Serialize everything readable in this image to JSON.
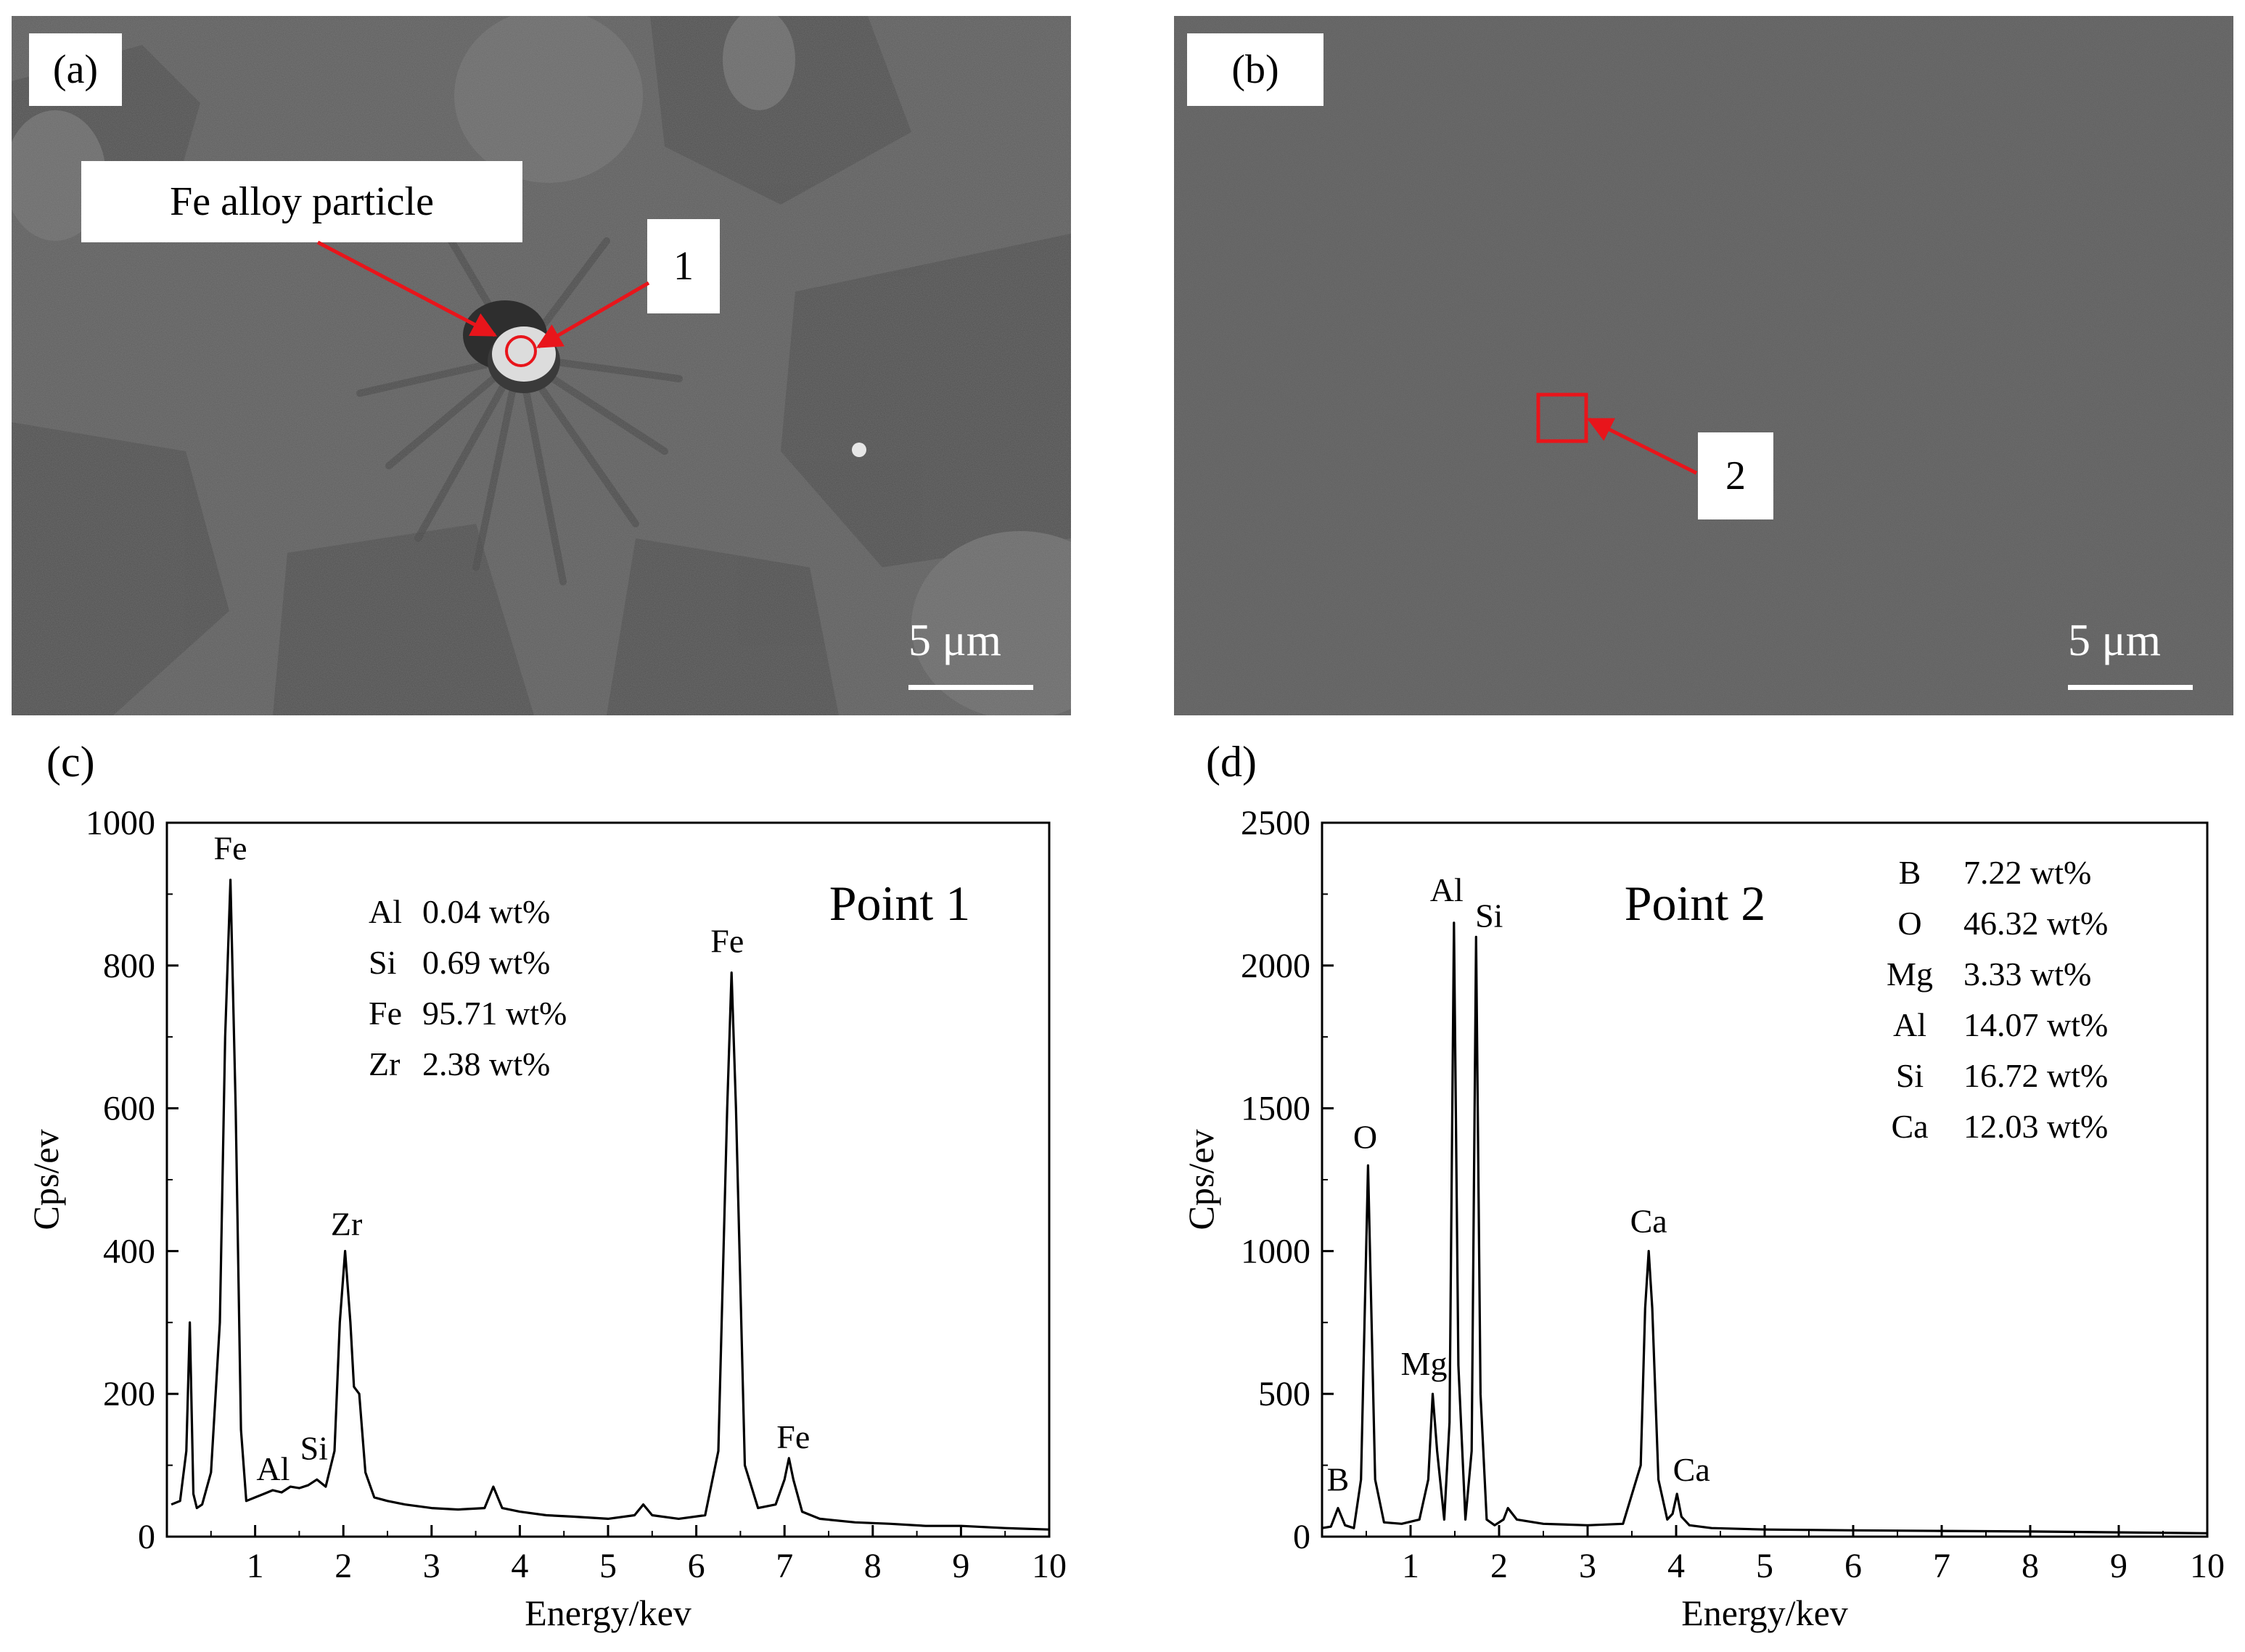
{
  "panels": {
    "a": {
      "label": "(a)",
      "particle_label": "Fe alloy particle",
      "point_label": "1",
      "scale_text": "5 μm"
    },
    "b": {
      "label": "(b)",
      "point_label": "2",
      "scale_text": "5 μm"
    },
    "c": {
      "label": "(c)"
    },
    "d": {
      "label": "(d)"
    }
  },
  "colors": {
    "marker": "#e8151b",
    "line": "#000000",
    "sem_bg": "#5f5f5f"
  },
  "chart_data": [
    {
      "type": "line",
      "panel": "c",
      "title": "Point 1",
      "xlabel": "Energy/kev",
      "ylabel": "Cps/ev",
      "xlim": [
        0,
        10
      ],
      "ylim": [
        0,
        1000
      ],
      "xticks": [
        1,
        2,
        3,
        4,
        5,
        6,
        7,
        8,
        9,
        10
      ],
      "yticks": [
        0,
        200,
        400,
        600,
        800,
        1000
      ],
      "grid": false,
      "composition": [
        {
          "element": "Al",
          "value": "0.04 wt%"
        },
        {
          "element": "Si",
          "value": "0.69 wt%"
        },
        {
          "element": "Fe",
          "value": "95.71 wt%"
        },
        {
          "element": "Zr",
          "value": "2.38 wt%"
        }
      ],
      "peaks": [
        {
          "label": "Fe",
          "x": 0.72,
          "y": 920
        },
        {
          "label": "Zr",
          "x": 2.02,
          "y": 400
        },
        {
          "label": "Al",
          "x": 1.5,
          "y": 65
        },
        {
          "label": "Si",
          "x": 1.75,
          "y": 80
        },
        {
          "label": "Fe",
          "x": 6.4,
          "y": 790
        },
        {
          "label": "Fe",
          "x": 7.05,
          "y": 110
        }
      ],
      "x": [
        0.05,
        0.15,
        0.22,
        0.26,
        0.3,
        0.34,
        0.4,
        0.5,
        0.6,
        0.66,
        0.72,
        0.78,
        0.84,
        0.9,
        1.0,
        1.1,
        1.2,
        1.3,
        1.4,
        1.5,
        1.6,
        1.7,
        1.8,
        1.9,
        1.96,
        2.02,
        2.08,
        2.12,
        2.18,
        2.25,
        2.35,
        2.5,
        2.7,
        3.0,
        3.3,
        3.6,
        3.7,
        3.8,
        4.0,
        4.3,
        4.6,
        5.0,
        5.3,
        5.4,
        5.5,
        5.8,
        6.1,
        6.25,
        6.35,
        6.4,
        6.45,
        6.55,
        6.7,
        6.9,
        7.0,
        7.05,
        7.1,
        7.2,
        7.4,
        7.8,
        8.2,
        8.6,
        9.0,
        9.5,
        10.0
      ],
      "y": [
        45,
        50,
        120,
        300,
        60,
        40,
        45,
        90,
        300,
        700,
        920,
        600,
        150,
        50,
        55,
        60,
        65,
        62,
        70,
        68,
        72,
        80,
        70,
        120,
        300,
        400,
        300,
        210,
        200,
        90,
        55,
        50,
        45,
        40,
        38,
        40,
        70,
        40,
        35,
        30,
        28,
        25,
        30,
        45,
        30,
        25,
        30,
        120,
        600,
        790,
        600,
        100,
        40,
        45,
        80,
        110,
        80,
        35,
        25,
        20,
        18,
        15,
        15,
        12,
        10
      ]
    },
    {
      "type": "line",
      "panel": "d",
      "title": "Point 2",
      "xlabel": "Energy/kev",
      "ylabel": "Cps/ev",
      "xlim": [
        0,
        10
      ],
      "ylim": [
        0,
        2500
      ],
      "xticks": [
        1,
        2,
        3,
        4,
        5,
        6,
        7,
        8,
        9,
        10
      ],
      "yticks": [
        0,
        500,
        1000,
        1500,
        2000,
        2500
      ],
      "grid": false,
      "composition": [
        {
          "element": "B",
          "value": "7.22 wt%"
        },
        {
          "element": "O",
          "value": "46.32 wt%"
        },
        {
          "element": "Mg",
          "value": "3.33 wt%"
        },
        {
          "element": "Al",
          "value": "14.07 wt%"
        },
        {
          "element": "Si",
          "value": "16.72 wt%"
        },
        {
          "element": "Ca",
          "value": "12.03 wt%"
        }
      ],
      "peaks": [
        {
          "label": "B",
          "x": 0.18,
          "y": 100
        },
        {
          "label": "O",
          "x": 0.52,
          "y": 1300
        },
        {
          "label": "Mg",
          "x": 1.25,
          "y": 500
        },
        {
          "label": "Al",
          "x": 1.49,
          "y": 2150
        },
        {
          "label": "Si",
          "x": 1.74,
          "y": 2100
        },
        {
          "label": "Ca",
          "x": 3.69,
          "y": 1000
        },
        {
          "label": "Ca",
          "x": 4.01,
          "y": 150
        }
      ],
      "x": [
        0.0,
        0.1,
        0.18,
        0.26,
        0.36,
        0.44,
        0.52,
        0.6,
        0.7,
        0.9,
        1.1,
        1.2,
        1.25,
        1.3,
        1.38,
        1.44,
        1.49,
        1.54,
        1.62,
        1.69,
        1.74,
        1.79,
        1.86,
        1.95,
        2.05,
        2.1,
        2.2,
        2.5,
        3.0,
        3.4,
        3.6,
        3.65,
        3.69,
        3.73,
        3.8,
        3.9,
        3.96,
        4.01,
        4.06,
        4.15,
        4.4,
        5.0,
        6.0,
        7.0,
        8.0,
        9.0,
        10.0
      ],
      "y": [
        30,
        35,
        100,
        40,
        30,
        200,
        1300,
        200,
        50,
        45,
        60,
        200,
        500,
        300,
        60,
        400,
        2150,
        600,
        60,
        300,
        2100,
        500,
        60,
        40,
        60,
        100,
        60,
        45,
        40,
        45,
        250,
        800,
        1000,
        800,
        200,
        60,
        80,
        150,
        70,
        40,
        30,
        25,
        22,
        20,
        18,
        15,
        12
      ]
    }
  ]
}
